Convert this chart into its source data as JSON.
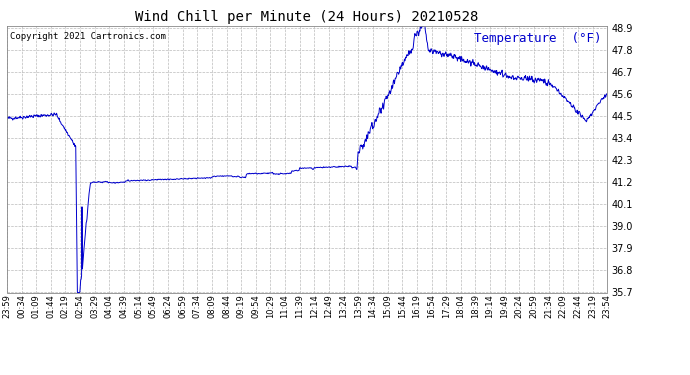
{
  "title": "Wind Chill per Minute (24 Hours) 20210528",
  "copyright_text": "Copyright 2021 Cartronics.com",
  "legend_label": "Temperature  (°F)",
  "line_color": "#0000cc",
  "background_color": "#ffffff",
  "grid_color": "#aaaaaa",
  "ylim": [
    35.7,
    49.0
  ],
  "yticks": [
    35.7,
    36.8,
    37.9,
    39.0,
    40.1,
    41.2,
    42.3,
    43.4,
    44.5,
    45.6,
    46.7,
    47.8,
    48.9
  ],
  "xtick_labels": [
    "23:59",
    "00:34",
    "01:09",
    "01:44",
    "02:19",
    "02:54",
    "03:29",
    "04:04",
    "04:39",
    "05:14",
    "05:49",
    "06:24",
    "06:59",
    "07:34",
    "08:09",
    "08:44",
    "09:19",
    "09:54",
    "10:29",
    "11:04",
    "11:39",
    "12:14",
    "12:49",
    "13:24",
    "13:59",
    "14:34",
    "15:09",
    "15:44",
    "16:19",
    "16:54",
    "17:29",
    "18:04",
    "18:39",
    "19:14",
    "19:49",
    "20:24",
    "20:59",
    "21:34",
    "22:09",
    "22:44",
    "23:19",
    "23:54"
  ],
  "num_points": 1440,
  "title_fontsize": 10,
  "ytick_fontsize": 7,
  "xtick_fontsize": 6,
  "copyright_fontsize": 6.5,
  "legend_fontsize": 9
}
